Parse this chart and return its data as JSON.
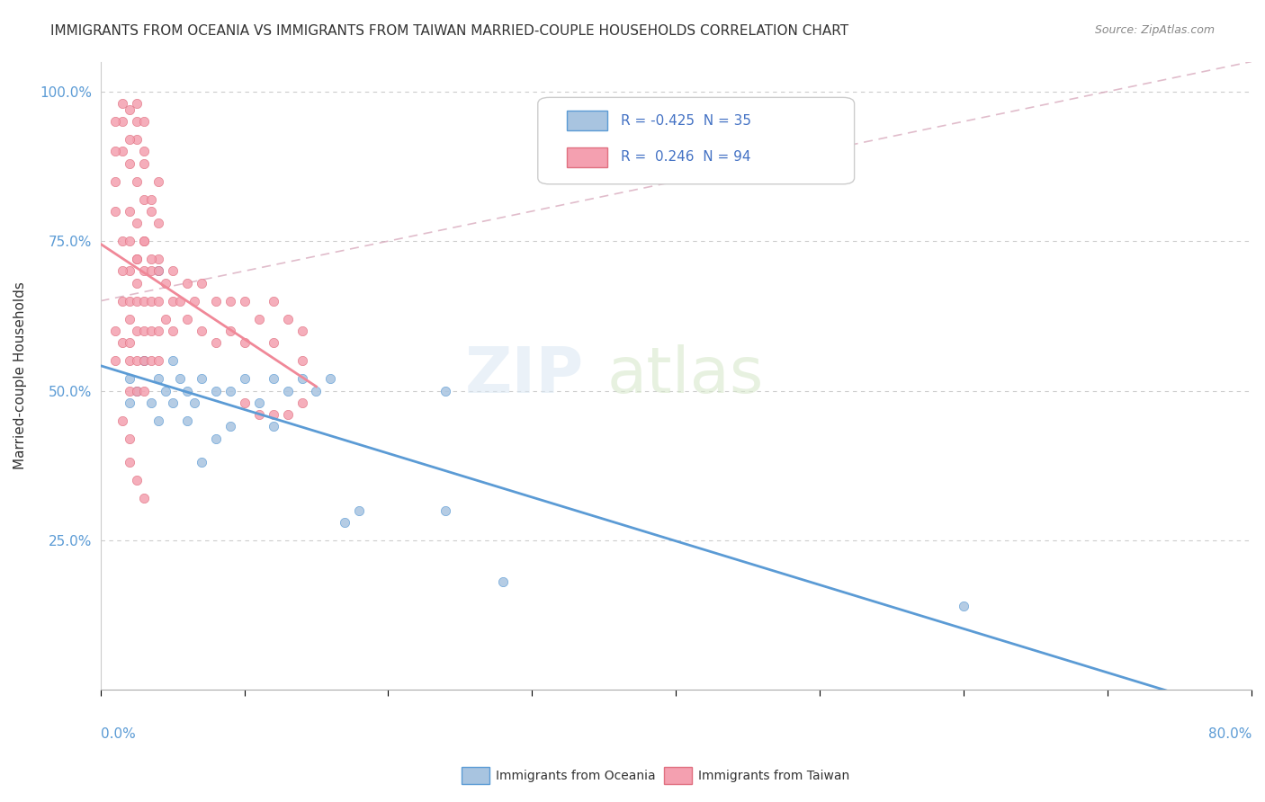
{
  "title": "IMMIGRANTS FROM OCEANIA VS IMMIGRANTS FROM TAIWAN MARRIED-COUPLE HOUSEHOLDS CORRELATION CHART",
  "source": "Source: ZipAtlas.com",
  "ylabel": "Married-couple Households",
  "color_oceania": "#a8c4e0",
  "color_taiwan": "#f4a0b0",
  "color_line_oceania": "#5b9bd5",
  "color_line_taiwan": "#f08898",
  "color_diag": "#d4a0b5",
  "background_color": "#ffffff",
  "xlim": [
    0.0,
    0.8
  ],
  "ylim": [
    0.0,
    1.05
  ],
  "oceania_points": [
    [
      0.02,
      0.52
    ],
    [
      0.02,
      0.48
    ],
    [
      0.025,
      0.5
    ],
    [
      0.03,
      0.55
    ],
    [
      0.035,
      0.48
    ],
    [
      0.04,
      0.52
    ],
    [
      0.04,
      0.45
    ],
    [
      0.045,
      0.5
    ],
    [
      0.05,
      0.55
    ],
    [
      0.05,
      0.48
    ],
    [
      0.055,
      0.52
    ],
    [
      0.06,
      0.5
    ],
    [
      0.06,
      0.45
    ],
    [
      0.065,
      0.48
    ],
    [
      0.07,
      0.52
    ],
    [
      0.07,
      0.38
    ],
    [
      0.08,
      0.5
    ],
    [
      0.08,
      0.42
    ],
    [
      0.09,
      0.5
    ],
    [
      0.09,
      0.44
    ],
    [
      0.1,
      0.52
    ],
    [
      0.11,
      0.48
    ],
    [
      0.12,
      0.52
    ],
    [
      0.12,
      0.44
    ],
    [
      0.13,
      0.5
    ],
    [
      0.14,
      0.52
    ],
    [
      0.15,
      0.5
    ],
    [
      0.16,
      0.52
    ],
    [
      0.17,
      0.28
    ],
    [
      0.18,
      0.3
    ],
    [
      0.24,
      0.5
    ],
    [
      0.24,
      0.3
    ],
    [
      0.28,
      0.18
    ],
    [
      0.6,
      0.14
    ],
    [
      0.04,
      0.7
    ]
  ],
  "taiwan_points": [
    [
      0.01,
      0.6
    ],
    [
      0.01,
      0.55
    ],
    [
      0.015,
      0.65
    ],
    [
      0.015,
      0.58
    ],
    [
      0.02,
      0.7
    ],
    [
      0.02,
      0.65
    ],
    [
      0.02,
      0.62
    ],
    [
      0.02,
      0.58
    ],
    [
      0.02,
      0.55
    ],
    [
      0.02,
      0.5
    ],
    [
      0.025,
      0.72
    ],
    [
      0.025,
      0.68
    ],
    [
      0.025,
      0.65
    ],
    [
      0.025,
      0.6
    ],
    [
      0.025,
      0.55
    ],
    [
      0.025,
      0.5
    ],
    [
      0.03,
      0.75
    ],
    [
      0.03,
      0.7
    ],
    [
      0.03,
      0.65
    ],
    [
      0.03,
      0.6
    ],
    [
      0.03,
      0.55
    ],
    [
      0.03,
      0.5
    ],
    [
      0.035,
      0.7
    ],
    [
      0.035,
      0.65
    ],
    [
      0.035,
      0.6
    ],
    [
      0.035,
      0.55
    ],
    [
      0.04,
      0.72
    ],
    [
      0.04,
      0.65
    ],
    [
      0.04,
      0.6
    ],
    [
      0.04,
      0.55
    ],
    [
      0.045,
      0.68
    ],
    [
      0.045,
      0.62
    ],
    [
      0.05,
      0.7
    ],
    [
      0.05,
      0.65
    ],
    [
      0.05,
      0.6
    ],
    [
      0.055,
      0.65
    ],
    [
      0.06,
      0.68
    ],
    [
      0.06,
      0.62
    ],
    [
      0.065,
      0.65
    ],
    [
      0.07,
      0.68
    ],
    [
      0.07,
      0.6
    ],
    [
      0.08,
      0.65
    ],
    [
      0.08,
      0.58
    ],
    [
      0.09,
      0.65
    ],
    [
      0.09,
      0.6
    ],
    [
      0.1,
      0.65
    ],
    [
      0.1,
      0.58
    ],
    [
      0.11,
      0.62
    ],
    [
      0.12,
      0.65
    ],
    [
      0.12,
      0.58
    ],
    [
      0.13,
      0.62
    ],
    [
      0.14,
      0.6
    ],
    [
      0.14,
      0.55
    ],
    [
      0.02,
      0.8
    ],
    [
      0.025,
      0.78
    ],
    [
      0.03,
      0.82
    ],
    [
      0.035,
      0.8
    ],
    [
      0.04,
      0.78
    ],
    [
      0.025,
      0.85
    ],
    [
      0.03,
      0.88
    ],
    [
      0.035,
      0.82
    ],
    [
      0.04,
      0.85
    ],
    [
      0.015,
      0.9
    ],
    [
      0.02,
      0.88
    ],
    [
      0.025,
      0.92
    ],
    [
      0.03,
      0.9
    ],
    [
      0.015,
      0.95
    ],
    [
      0.02,
      0.92
    ],
    [
      0.025,
      0.95
    ],
    [
      0.03,
      0.95
    ],
    [
      0.015,
      0.98
    ],
    [
      0.02,
      0.97
    ],
    [
      0.025,
      0.98
    ],
    [
      0.01,
      0.95
    ],
    [
      0.01,
      0.9
    ],
    [
      0.01,
      0.85
    ],
    [
      0.01,
      0.8
    ],
    [
      0.015,
      0.75
    ],
    [
      0.015,
      0.7
    ],
    [
      0.02,
      0.75
    ],
    [
      0.025,
      0.72
    ],
    [
      0.03,
      0.75
    ],
    [
      0.035,
      0.72
    ],
    [
      0.04,
      0.7
    ],
    [
      0.015,
      0.45
    ],
    [
      0.02,
      0.42
    ],
    [
      0.02,
      0.38
    ],
    [
      0.025,
      0.35
    ],
    [
      0.03,
      0.32
    ],
    [
      0.13,
      0.46
    ],
    [
      0.14,
      0.48
    ],
    [
      0.12,
      0.46
    ],
    [
      0.11,
      0.46
    ],
    [
      0.1,
      0.48
    ]
  ]
}
